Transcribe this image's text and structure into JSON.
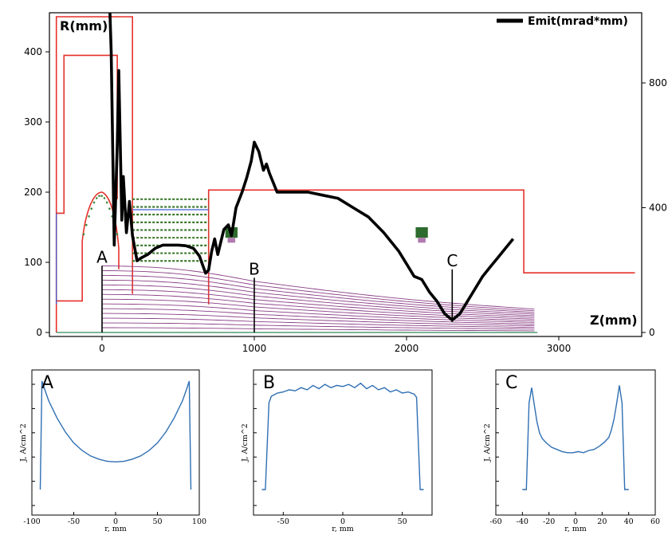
{
  "chart_data": [
    {
      "type": "line",
      "panel": "main",
      "title": "",
      "y_left_label": "R(mm)",
      "y_right_label": "",
      "x_label": "Z(mm)",
      "x_range": [
        -300,
        3500
      ],
      "y_left_range": [
        0,
        450
      ],
      "y_right_range": [
        0,
        1050
      ],
      "x_ticks": [
        0,
        1000,
        2000,
        3000
      ],
      "y_left_ticks": [
        0,
        100,
        200,
        300,
        400
      ],
      "y_right_ticks": [
        0,
        400,
        800
      ],
      "legend": {
        "label": "Emit(mrad*mm)",
        "position": "top-right"
      },
      "grid": false,
      "geometry_color": "#e5312b",
      "trajectory_color": "#8a3f86",
      "series": [
        {
          "name": "Emit(mrad*mm)",
          "axis": "right",
          "color": "#000000",
          "x": [
            50,
            60,
            80,
            100,
            110,
            130,
            140,
            160,
            180,
            200,
            230,
            260,
            300,
            350,
            400,
            450,
            500,
            550,
            600,
            640,
            680,
            700,
            720,
            740,
            760,
            800,
            830,
            850,
            880,
            920,
            950,
            980,
            1000,
            1030,
            1060,
            1080,
            1100,
            1150,
            1250,
            1350,
            1450,
            1550,
            1650,
            1750,
            1850,
            1950,
            2000,
            2050,
            2100,
            2150,
            2200,
            2250,
            2300,
            2350,
            2400,
            2450,
            2500,
            2550,
            2600,
            2650,
            2700
          ],
          "y": [
            1050,
            900,
            280,
            600,
            840,
            360,
            500,
            320,
            420,
            310,
            230,
            240,
            250,
            270,
            280,
            280,
            280,
            278,
            270,
            245,
            190,
            200,
            260,
            300,
            250,
            330,
            345,
            310,
            400,
            450,
            495,
            550,
            610,
            580,
            520,
            540,
            510,
            450,
            450,
            450,
            440,
            430,
            400,
            370,
            320,
            260,
            220,
            180,
            170,
            130,
            100,
            60,
            40,
            60,
            100,
            140,
            180,
            210,
            240,
            270,
            300
          ]
        }
      ],
      "boundary_outline": {
        "z": [
          -300,
          -300,
          200,
          200,
          100,
          100,
          -300
        ],
        "r": [
          0,
          450,
          450,
          85,
          85,
          170,
          170
        ]
      },
      "labels": [
        {
          "text": "A",
          "z": 0
        },
        {
          "text": "B",
          "z": 1000
        },
        {
          "text": "C",
          "z": 2300
        }
      ]
    },
    {
      "type": "line",
      "panel": "A",
      "label": "A",
      "xlabel": "r, mm",
      "ylabel": "J, A/cm^2",
      "x_range": [
        -100,
        100
      ],
      "x_ticks": [
        -100,
        -50,
        0,
        50,
        100
      ],
      "color": "#2f6fb3",
      "x": [
        -90,
        -88,
        -85,
        -80,
        -70,
        -60,
        -50,
        -40,
        -30,
        -20,
        -10,
        0,
        10,
        20,
        30,
        40,
        50,
        60,
        70,
        80,
        85,
        88,
        90
      ],
      "y": [
        0.0,
        1.0,
        0.93,
        0.82,
        0.66,
        0.53,
        0.43,
        0.36,
        0.31,
        0.28,
        0.26,
        0.255,
        0.26,
        0.28,
        0.31,
        0.36,
        0.43,
        0.53,
        0.66,
        0.82,
        0.93,
        1.0,
        0.0
      ]
    },
    {
      "type": "line",
      "panel": "B",
      "label": "B",
      "xlabel": "r, mm",
      "ylabel": "J, A/cm^2",
      "x_range": [
        -75,
        75
      ],
      "x_ticks": [
        -50,
        0,
        50
      ],
      "color": "#2f6fb3",
      "x": [
        -68,
        -65,
        -62,
        -60,
        -55,
        -50,
        -45,
        -40,
        -35,
        -30,
        -25,
        -20,
        -15,
        -10,
        -5,
        0,
        5,
        10,
        15,
        20,
        25,
        30,
        35,
        40,
        45,
        50,
        55,
        60,
        62,
        65,
        68
      ],
      "y": [
        0.0,
        0.0,
        0.8,
        0.86,
        0.89,
        0.9,
        0.92,
        0.91,
        0.94,
        0.92,
        0.96,
        0.93,
        0.97,
        0.94,
        0.96,
        0.95,
        0.97,
        0.94,
        0.98,
        0.93,
        0.96,
        0.92,
        0.94,
        0.9,
        0.92,
        0.89,
        0.9,
        0.88,
        0.85,
        0.0,
        0.0
      ]
    },
    {
      "type": "line",
      "panel": "C",
      "label": "C",
      "xlabel": "r, mm",
      "ylabel": "J, A/cm^2",
      "x_range": [
        -60,
        60
      ],
      "x_ticks": [
        -60,
        -40,
        -20,
        0,
        20,
        40,
        60
      ],
      "color": "#2f6fb3",
      "x": [
        -40,
        -37,
        -35,
        -33,
        -31,
        -29,
        -27,
        -25,
        -22,
        -18,
        -14,
        -10,
        -6,
        -2,
        2,
        6,
        10,
        14,
        18,
        22,
        25,
        27,
        29,
        31,
        33,
        35,
        37,
        40
      ],
      "y": [
        0.0,
        0.0,
        0.8,
        0.94,
        0.78,
        0.62,
        0.52,
        0.47,
        0.43,
        0.39,
        0.37,
        0.35,
        0.34,
        0.34,
        0.35,
        0.34,
        0.36,
        0.37,
        0.4,
        0.44,
        0.48,
        0.55,
        0.65,
        0.8,
        0.96,
        0.8,
        0.0,
        0.0
      ]
    }
  ]
}
